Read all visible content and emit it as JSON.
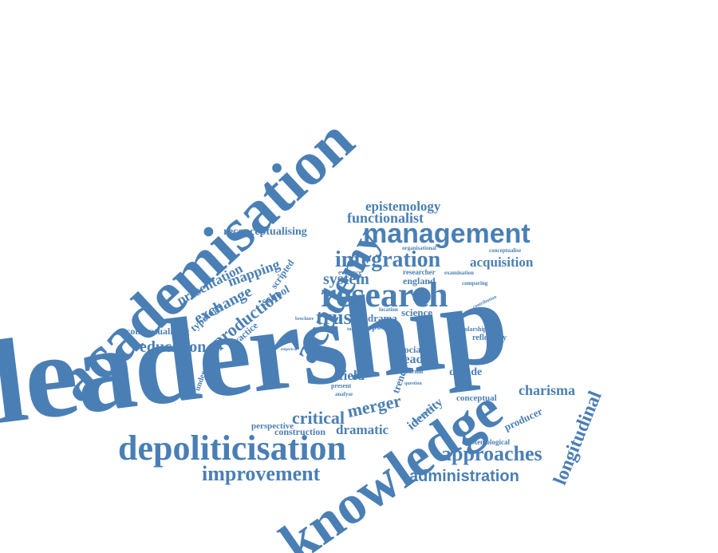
{
  "cloud": {
    "color": "#4a7fb5",
    "background": "#ffffff",
    "words": [
      "leadership",
      "academisation",
      "knowledge",
      "depoliticisation",
      "academy",
      "research",
      "management",
      "integration",
      "improvement",
      "approaches",
      "longitudinal",
      "trust",
      "system",
      "administration",
      "education",
      "functionalist",
      "epistemology",
      "acquisition",
      "merger",
      "critical",
      "dramatic",
      "production",
      "exchange",
      "mapping",
      "presentation",
      "reconceptualising",
      "charisma",
      "typology",
      "school",
      "scripted",
      "conceptualising",
      "practice",
      "field",
      "leader",
      "identity",
      "construction",
      "perspective",
      "decade",
      "social",
      "trend",
      "drama",
      "science",
      "england",
      "producer",
      "conceptual",
      "reflexivity",
      "scholarship",
      "epistemological",
      "understanding",
      "spost",
      "data",
      "theory",
      "present",
      "journal",
      "evidence",
      "location",
      "researcher",
      "examination",
      "comparing",
      "organisational",
      "conceptualise",
      "structural",
      "analyse",
      "question",
      "chapter",
      "contribution",
      "turning",
      "brochure",
      "empirical"
    ]
  }
}
